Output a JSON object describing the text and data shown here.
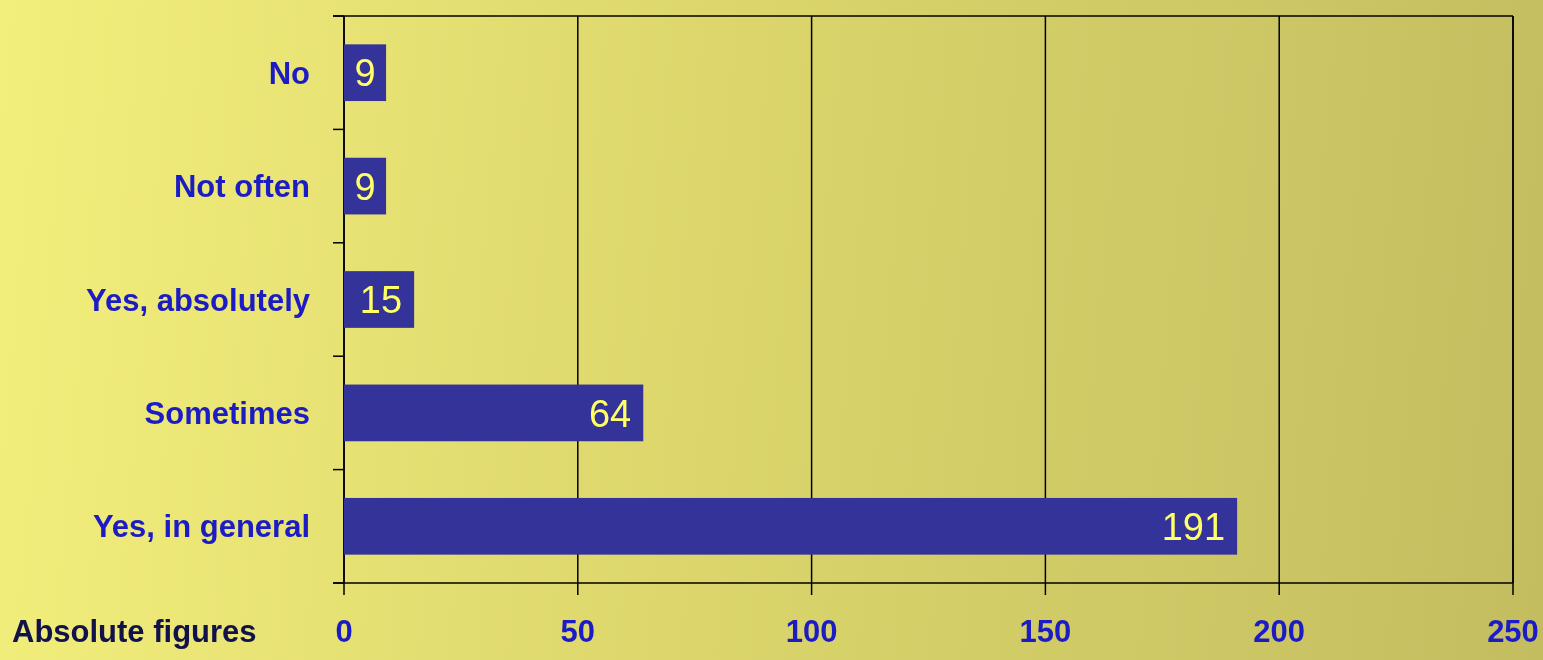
{
  "chart_data": {
    "type": "bar",
    "orientation": "horizontal",
    "xlabel": "Absolute figures",
    "categories": [
      "No",
      "Not often",
      "Yes, absolutely",
      "Sometimes",
      "Yes, in general"
    ],
    "values": [
      9,
      9,
      15,
      64,
      191
    ],
    "color": "#333399",
    "xlim": [
      0,
      250
    ],
    "xticks": [
      0,
      50,
      100,
      150,
      200,
      250
    ],
    "grid": "x",
    "data_labels": true
  }
}
